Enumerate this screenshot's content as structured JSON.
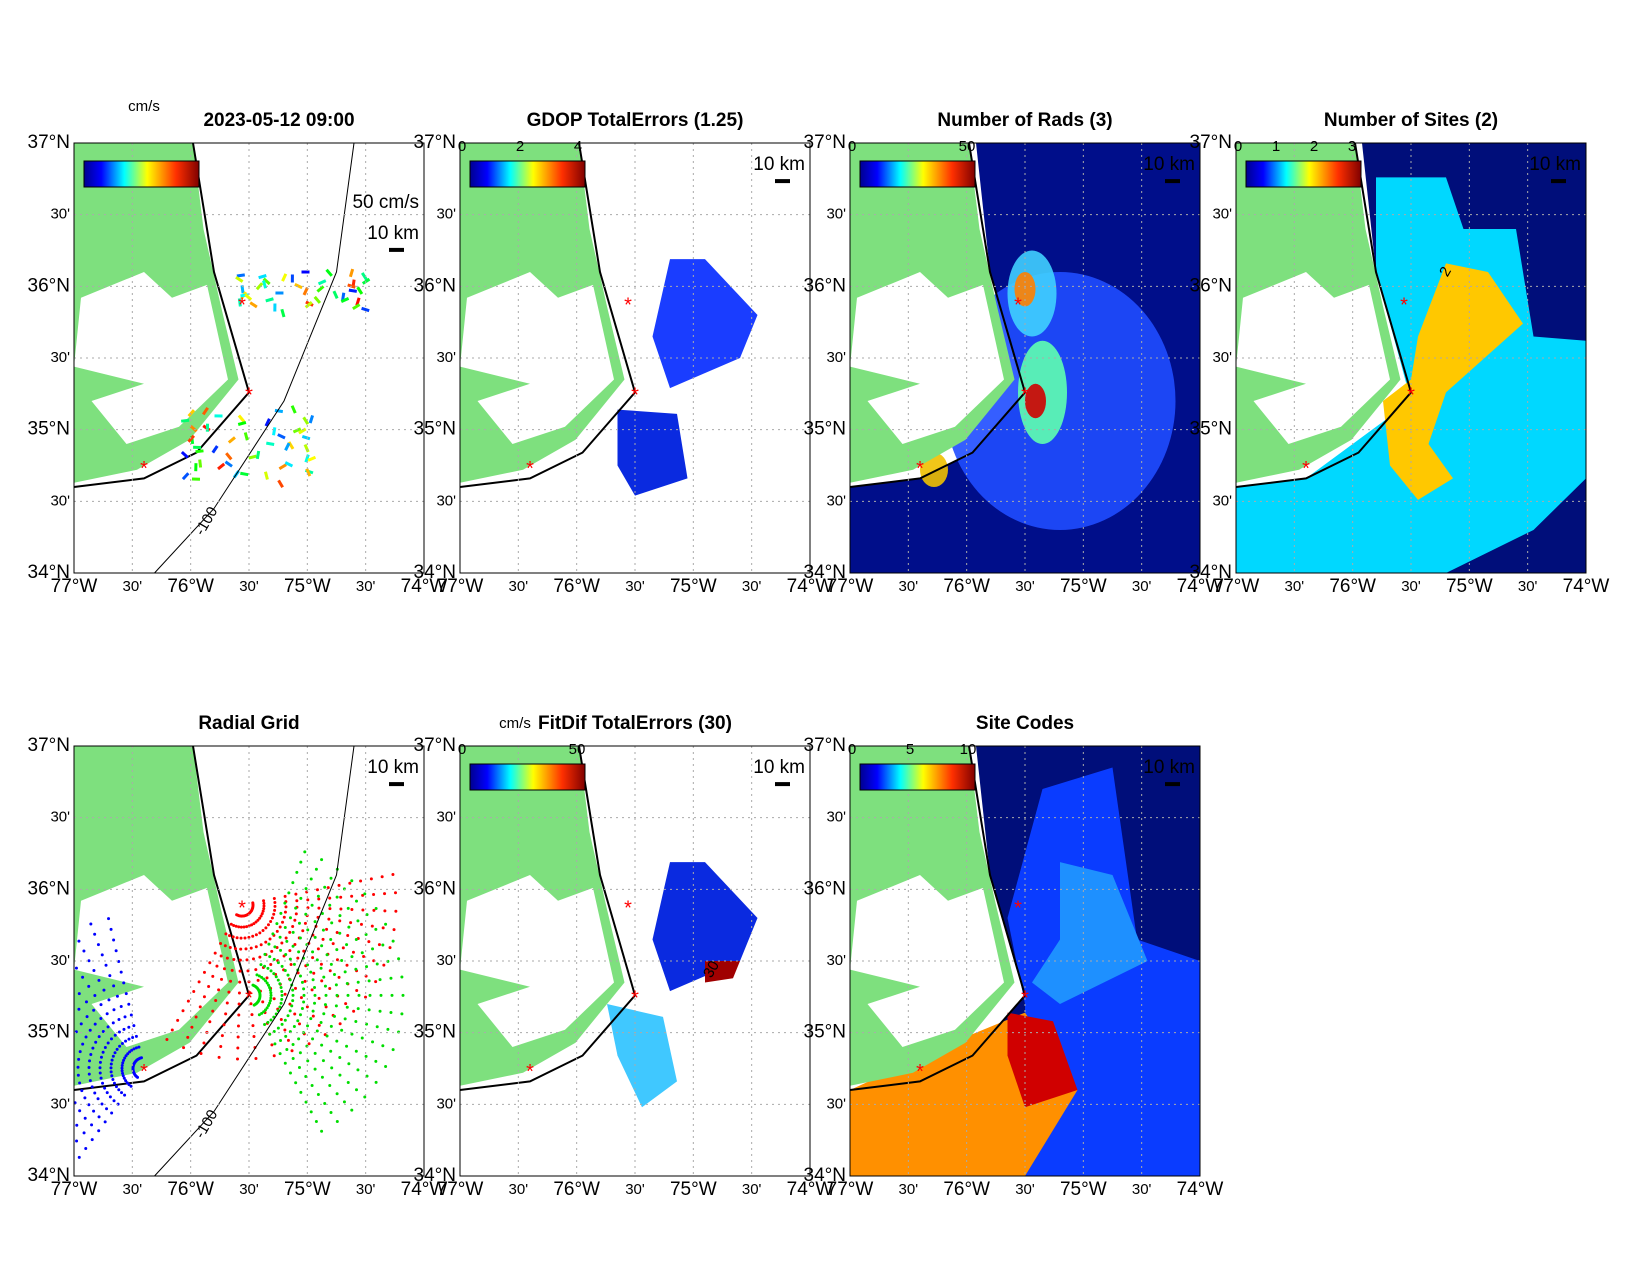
{
  "axis_labels": {
    "x": [
      "77°W",
      "30'",
      "76°W",
      "30'",
      "75°W",
      "30'",
      "74°W"
    ],
    "y": [
      "37°N",
      "30'",
      "36°N",
      "30'",
      "35°N",
      "30'",
      "34°N"
    ]
  },
  "panels": [
    {
      "title": "2023-05-12 09:00",
      "unit": "cm/s",
      "vector_label": "50 cm/s",
      "scale_label": "10 km",
      "contour_label": "-100"
    },
    {
      "title": "GDOP TotalErrors (1.25)",
      "colorbar_ticks": [
        "0",
        "2",
        "4"
      ],
      "scale_label": "10 km"
    },
    {
      "title": "Number of Rads (3)",
      "colorbar_ticks": [
        "0",
        "50"
      ],
      "scale_label": "10 km"
    },
    {
      "title": "Number of Sites (2)",
      "colorbar_ticks": [
        "0",
        "1",
        "2",
        "3"
      ],
      "scale_label": "10 km",
      "contour_label": "2"
    },
    {
      "title": "Radial Grid",
      "scale_label": "10 km",
      "contour_label": "-100"
    },
    {
      "title": "FitDif TotalErrors (30)",
      "unit": "cm/s",
      "colorbar_ticks": [
        "0",
        "50"
      ],
      "scale_label": "10 km",
      "contour_label": "30"
    },
    {
      "title": "Site Codes",
      "colorbar_ticks": [
        "0",
        "5",
        "10"
      ],
      "scale_label": "10 km"
    }
  ]
}
